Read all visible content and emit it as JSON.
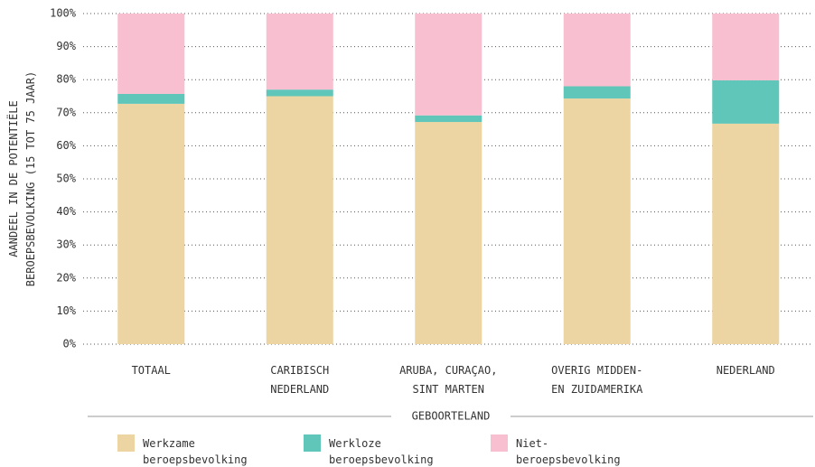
{
  "chart_data": {
    "type": "stacked_bar",
    "y_label": "AANDEEL IN DE POTENTIËLE\nBEROEPSBEVOLKING (15 TOT 75 JAAR)",
    "x_label": "GEBOORTELAND",
    "categories": [
      "TOTAAL",
      "CARIBISCH\nNEDERLAND",
      "ARUBA, CURAÇAO,\nSINT MARTEN",
      "OVERIG MIDDEN-\nEN ZUIDAMERIKA",
      "NEDERLAND"
    ],
    "series": [
      {
        "name": "Werkzame\nberoepsbevolking",
        "color": "#ecd5a3",
        "values": [
          72.7,
          75,
          67.2,
          74.3,
          66.7
        ]
      },
      {
        "name": "Werkloze\nberoepsbevolking",
        "color": "#5fc6b9",
        "values": [
          3,
          2,
          2,
          3.7,
          13.1
        ]
      },
      {
        "name": "Niet-\nberoepsbevolking",
        "color": "#f7bfcf",
        "values": [
          24.3,
          23,
          30.8,
          22,
          20.2
        ]
      }
    ],
    "ylim": [
      0,
      100
    ],
    "yticks": [
      {
        "value": 0,
        "label": "0%"
      },
      {
        "value": 10,
        "label": "10%"
      },
      {
        "value": 20,
        "label": "20%"
      },
      {
        "value": 30,
        "label": "30%"
      },
      {
        "value": 40,
        "label": "40%"
      },
      {
        "value": 50,
        "label": "50%"
      },
      {
        "value": 60,
        "label": "60%"
      },
      {
        "value": 70,
        "label": "70%"
      },
      {
        "value": 80,
        "label": "80%"
      },
      {
        "value": 90,
        "label": "90%"
      },
      {
        "value": 100,
        "label": "100%"
      }
    ],
    "grid": true
  }
}
